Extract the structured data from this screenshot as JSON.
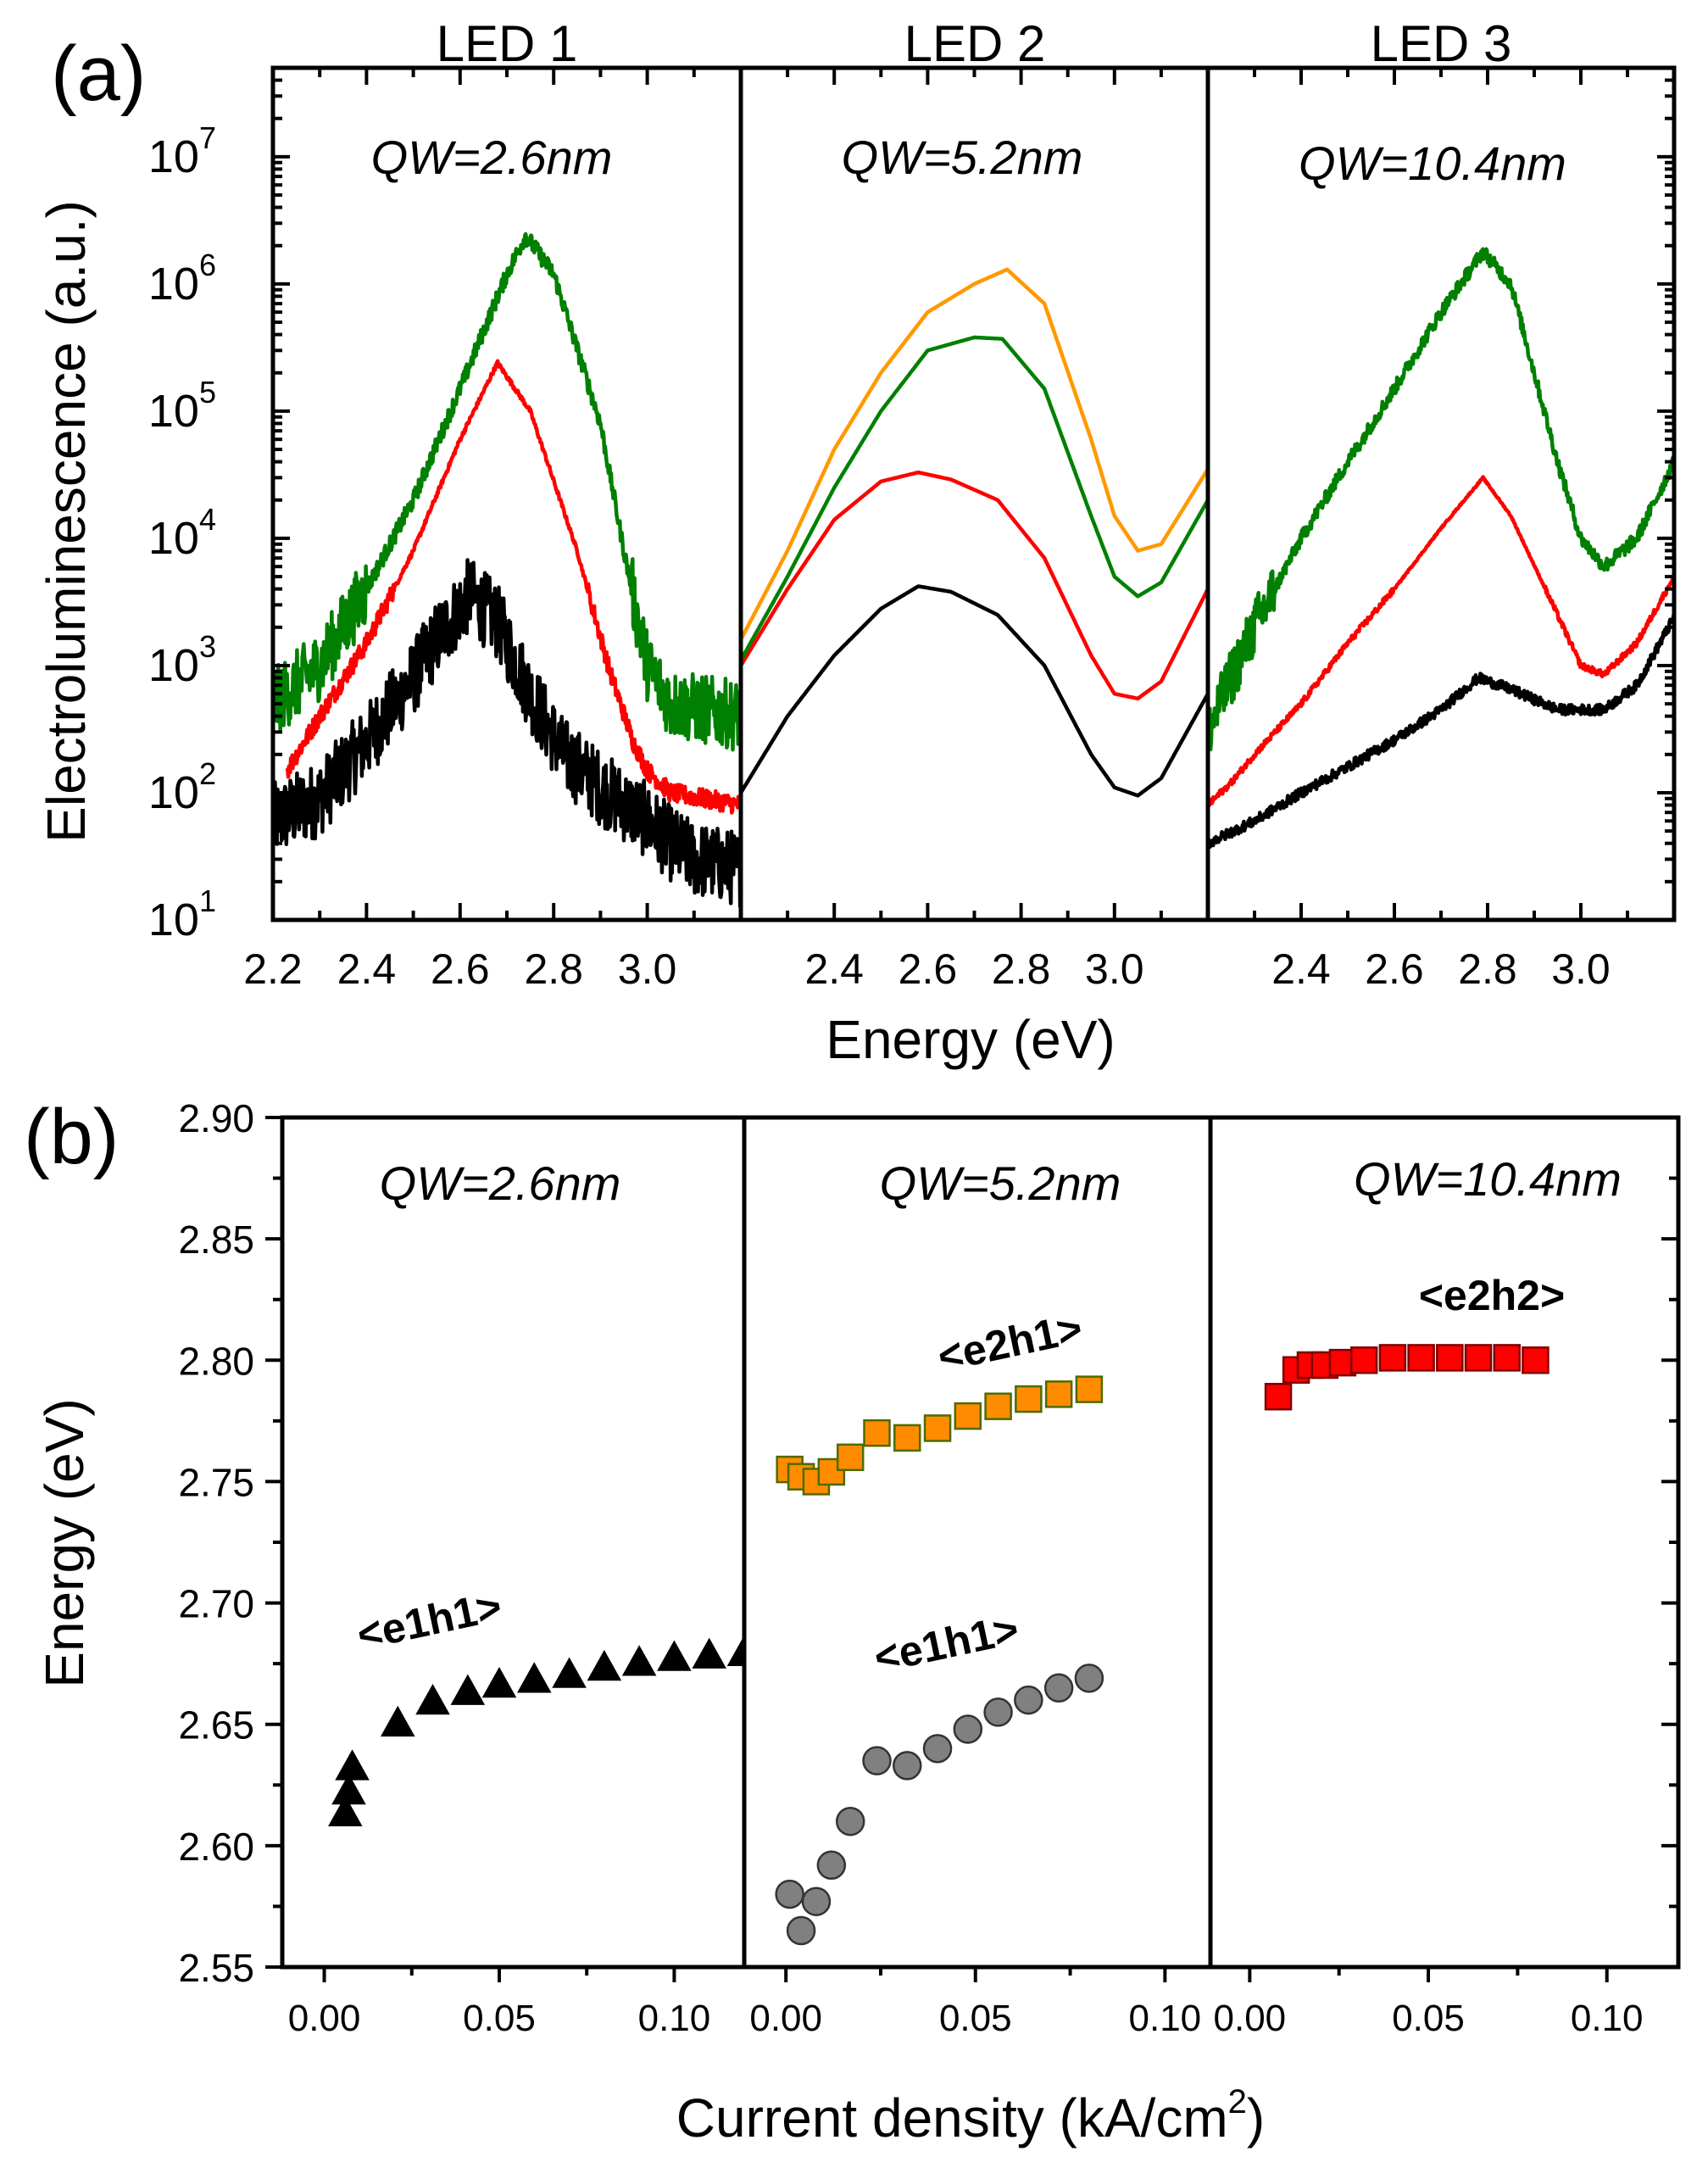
{
  "figure": {
    "panel_a_label": "(a)",
    "panel_b_label": "(b)"
  },
  "chart_data": [
    {
      "type": "line",
      "panel": "(a)",
      "ylabel": "Electroluminescence (a.u.)",
      "xlabel": "Energy (eV)",
      "yscale": "log",
      "ylim": [
        10,
        50000000
      ],
      "ytick_labels": [
        {
          "base": "10",
          "exp": "1"
        },
        {
          "base": "10",
          "exp": "2"
        },
        {
          "base": "10",
          "exp": "3"
        },
        {
          "base": "10",
          "exp": "4"
        },
        {
          "base": "10",
          "exp": "5"
        },
        {
          "base": "10",
          "exp": "6"
        },
        {
          "base": "10",
          "exp": "7"
        }
      ],
      "colors": {
        "black": "#000000",
        "red": "#ff0000",
        "green": "#008000",
        "orange": "#ff9900"
      },
      "subplots": [
        {
          "title": "LED 1",
          "annotation": "QW=2.6nm",
          "xlim": [
            2.2,
            3.2
          ],
          "xtick_labels": [
            "2.2",
            "2.4",
            "2.6",
            "2.8",
            "3.0"
          ],
          "series": [
            {
              "name": "black",
              "color": "#000000",
              "noise": 0.6,
              "points": [
                [
                  2.2,
                  60
                ],
                [
                  2.3,
                  90
                ],
                [
                  2.4,
                  250
                ],
                [
                  2.5,
                  800
                ],
                [
                  2.55,
                  1600
                ],
                [
                  2.62,
                  3600
                ],
                [
                  2.68,
                  2200
                ],
                [
                  2.75,
                  600
                ],
                [
                  2.82,
                  200
                ],
                [
                  2.9,
                  110
                ],
                [
                  3.0,
                  60
                ],
                [
                  3.05,
                  40
                ],
                [
                  3.1,
                  30
                ],
                [
                  3.2,
                  25
                ]
              ]
            },
            {
              "name": "red",
              "color": "#ff0000",
              "noise": 0.15,
              "points": [
                [
                  2.23,
                  150
                ],
                [
                  2.3,
                  400
                ],
                [
                  2.4,
                  1500
                ],
                [
                  2.5,
                  8000
                ],
                [
                  2.6,
                  60000
                ],
                [
                  2.68,
                  240000
                ],
                [
                  2.75,
                  100000
                ],
                [
                  2.85,
                  8000
                ],
                [
                  2.92,
                  900
                ],
                [
                  2.97,
                  250
                ],
                [
                  3.0,
                  150
                ],
                [
                  3.05,
                  100
                ],
                [
                  3.2,
                  80
                ]
              ]
            },
            {
              "name": "green",
              "color": "#008000",
              "noise": 0.55,
              "points": [
                [
                  2.2,
                  500
                ],
                [
                  2.3,
                  1000
                ],
                [
                  2.4,
                  4000
                ],
                [
                  2.5,
                  20000
                ],
                [
                  2.6,
                  150000
                ],
                [
                  2.7,
                  1200000
                ],
                [
                  2.74,
                  2400000
                ],
                [
                  2.8,
                  1200000
                ],
                [
                  2.9,
                  80000
                ],
                [
                  2.95,
                  8000
                ],
                [
                  3.0,
                  1000
                ],
                [
                  3.05,
                  500
                ],
                [
                  3.2,
                  400
                ]
              ]
            }
          ]
        },
        {
          "title": "LED 2",
          "annotation": "QW=5.2nm",
          "xlim": [
            2.2,
            3.2
          ],
          "xtick_labels": [
            "2.4",
            "2.6",
            "2.8",
            "3.0"
          ],
          "series": [
            {
              "name": "black",
              "color": "#000000",
              "noise": 0,
              "points": [
                [
                  2.2,
                  100
                ],
                [
                  2.3,
                  400
                ],
                [
                  2.4,
                  1200
                ],
                [
                  2.5,
                  2800
                ],
                [
                  2.58,
                  4200
                ],
                [
                  2.65,
                  3800
                ],
                [
                  2.75,
                  2500
                ],
                [
                  2.85,
                  1000
                ],
                [
                  2.95,
                  200
                ],
                [
                  3.0,
                  110
                ],
                [
                  3.05,
                  95
                ],
                [
                  3.1,
                  130
                ],
                [
                  3.2,
                  600
                ]
              ]
            },
            {
              "name": "red",
              "color": "#ff0000",
              "noise": 0,
              "points": [
                [
                  2.2,
                  1000
                ],
                [
                  2.3,
                  4000
                ],
                [
                  2.4,
                  14000
                ],
                [
                  2.5,
                  28000
                ],
                [
                  2.58,
                  33000
                ],
                [
                  2.65,
                  29000
                ],
                [
                  2.75,
                  20000
                ],
                [
                  2.85,
                  7000
                ],
                [
                  2.95,
                  1200
                ],
                [
                  3.0,
                  600
                ],
                [
                  3.05,
                  550
                ],
                [
                  3.1,
                  750
                ],
                [
                  3.2,
                  4000
                ]
              ]
            },
            {
              "name": "green",
              "color": "#008000",
              "noise": 0,
              "points": [
                [
                  2.2,
                  1100
                ],
                [
                  2.3,
                  5000
                ],
                [
                  2.4,
                  25000
                ],
                [
                  2.5,
                  100000
                ],
                [
                  2.6,
                  300000
                ],
                [
                  2.7,
                  380000
                ],
                [
                  2.76,
                  370000
                ],
                [
                  2.85,
                  150000
                ],
                [
                  2.95,
                  15000
                ],
                [
                  3.0,
                  5000
                ],
                [
                  3.05,
                  3500
                ],
                [
                  3.1,
                  4500
                ],
                [
                  3.2,
                  20000
                ]
              ]
            },
            {
              "name": "orange",
              "color": "#ff9900",
              "noise": 0,
              "points": [
                [
                  2.2,
                  1600
                ],
                [
                  2.3,
                  8000
                ],
                [
                  2.4,
                  50000
                ],
                [
                  2.5,
                  200000
                ],
                [
                  2.6,
                  600000
                ],
                [
                  2.7,
                  1000000
                ],
                [
                  2.77,
                  1300000
                ],
                [
                  2.85,
                  700000
                ],
                [
                  2.95,
                  60000
                ],
                [
                  3.0,
                  15000
                ],
                [
                  3.05,
                  8000
                ],
                [
                  3.1,
                  9000
                ],
                [
                  3.2,
                  35000
                ]
              ]
            }
          ]
        },
        {
          "title": "LED 3",
          "annotation": "QW=10.4nm",
          "xlim": [
            2.2,
            3.2
          ],
          "xtick_labels": [
            "2.4",
            "2.6",
            "2.8",
            "3.0"
          ],
          "series": [
            {
              "name": "black",
              "color": "#000000",
              "noise": 0.08,
              "points": [
                [
                  2.2,
                  40
                ],
                [
                  2.3,
                  60
                ],
                [
                  2.4,
                  100
                ],
                [
                  2.5,
                  160
                ],
                [
                  2.6,
                  260
                ],
                [
                  2.7,
                  450
                ],
                [
                  2.78,
                  800
                ],
                [
                  2.85,
                  650
                ],
                [
                  2.95,
                  450
                ],
                [
                  3.05,
                  450
                ],
                [
                  3.12,
                  700
                ],
                [
                  3.2,
                  2400
                ]
              ]
            },
            {
              "name": "red",
              "color": "#ff0000",
              "noise": 0.05,
              "points": [
                [
                  2.2,
                  80
                ],
                [
                  2.25,
                  120
                ],
                [
                  2.3,
                  200
                ],
                [
                  2.4,
                  500
                ],
                [
                  2.5,
                  1500
                ],
                [
                  2.6,
                  4000
                ],
                [
                  2.7,
                  12000
                ],
                [
                  2.79,
                  30000
                ],
                [
                  2.85,
                  15000
                ],
                [
                  2.95,
                  2500
                ],
                [
                  3.0,
                  1000
                ],
                [
                  3.05,
                  850
                ],
                [
                  3.12,
                  1500
                ],
                [
                  3.2,
                  5000
                ]
              ]
            },
            {
              "name": "green",
              "color": "#008000",
              "noise": 0.45,
              "points": [
                [
                  2.2,
                  300
                ],
                [
                  2.25,
                  800
                ],
                [
                  2.3,
                  2000
                ],
                [
                  2.4,
                  10000
                ],
                [
                  2.5,
                  40000
                ],
                [
                  2.6,
                  150000
                ],
                [
                  2.7,
                  600000
                ],
                [
                  2.79,
                  1800000
                ],
                [
                  2.85,
                  1000000
                ],
                [
                  2.95,
                  40000
                ],
                [
                  3.0,
                  10000
                ],
                [
                  3.05,
                  6000
                ],
                [
                  3.12,
                  10000
                ],
                [
                  3.2,
                  40000
                ]
              ]
            }
          ]
        }
      ]
    },
    {
      "type": "scatter",
      "panel": "(b)",
      "ylabel": "Energy (eV)",
      "xlabel_text": "Current density (kA/cm",
      "xlabel_sup": "2",
      "xlabel_close": ")",
      "ylim": [
        2.55,
        2.9
      ],
      "ytick_labels": [
        "2.55",
        "2.60",
        "2.65",
        "2.70",
        "2.75",
        "2.80",
        "2.85",
        "2.90"
      ],
      "subplots": [
        {
          "annotation": "QW=2.6nm",
          "xlim": [
            -0.012,
            0.12
          ],
          "xtick_labels": [
            "0.00",
            "0.05",
            "0.10"
          ],
          "series": [
            {
              "name": "<e1h1>",
              "marker": "triangle",
              "color": "#000000",
              "x": [
                0.006,
                0.007,
                0.008,
                0.021,
                0.031,
                0.041,
                0.05,
                0.06,
                0.07,
                0.08,
                0.09,
                0.1,
                0.11,
                0.12
              ],
              "y": [
                2.613,
                2.622,
                2.632,
                2.65,
                2.659,
                2.663,
                2.666,
                2.668,
                2.67,
                2.673,
                2.675,
                2.677,
                2.678,
                2.679
              ]
            }
          ]
        },
        {
          "annotation": "QW=5.2nm",
          "xlim": [
            -0.011,
            0.112
          ],
          "xtick_labels": [
            "0.00",
            "0.05",
            "0.10"
          ],
          "series": [
            {
              "name": "<e1h1>",
              "marker": "circle",
              "color": "#808080",
              "x": [
                0.001,
                0.004,
                0.008,
                0.012,
                0.017,
                0.024,
                0.032,
                0.04,
                0.048,
                0.056,
                0.064,
                0.072,
                0.08
              ],
              "y": [
                2.58,
                2.565,
                2.577,
                2.592,
                2.61,
                2.635,
                2.633,
                2.64,
                2.648,
                2.655,
                2.66,
                2.665,
                2.669
              ]
            },
            {
              "name": "<e2h1>",
              "marker": "square",
              "color": "#ff8c00",
              "x": [
                0.001,
                0.004,
                0.008,
                0.012,
                0.017,
                0.024,
                0.032,
                0.04,
                0.048,
                0.056,
                0.064,
                0.072,
                0.08
              ],
              "y": [
                2.755,
                2.752,
                2.75,
                2.754,
                2.76,
                2.77,
                2.768,
                2.772,
                2.777,
                2.781,
                2.784,
                2.786,
                2.788
              ]
            }
          ]
        },
        {
          "annotation": "QW=10.4nm",
          "xlim": [
            -0.011,
            0.12
          ],
          "xtick_labels": [
            "0.00",
            "0.05",
            "0.10"
          ],
          "series": [
            {
              "name": "<e2h2>",
              "marker": "square",
              "color": "#ff0000",
              "x": [
                0.008,
                0.013,
                0.017,
                0.021,
                0.026,
                0.032,
                0.04,
                0.048,
                0.056,
                0.064,
                0.072,
                0.08
              ],
              "y": [
                2.785,
                2.796,
                2.798,
                2.798,
                2.799,
                2.8,
                2.801,
                2.801,
                2.801,
                2.801,
                2.801,
                2.8
              ]
            }
          ]
        }
      ]
    }
  ]
}
